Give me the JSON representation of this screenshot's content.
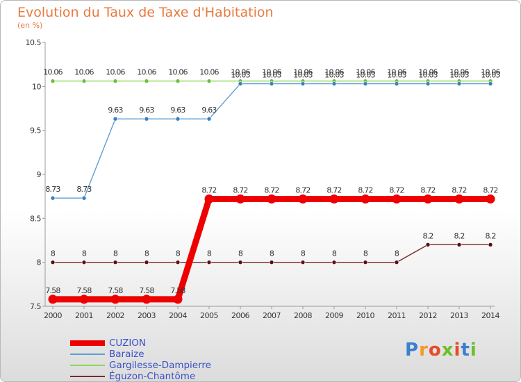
{
  "title": "Evolution du Taux de Taxe d'Habitation",
  "subtitle": "(en %)",
  "logo": {
    "text": "Proxiti",
    "letters": [
      "P",
      "r",
      "o",
      "x",
      "i",
      "t",
      "i"
    ],
    "colors": [
      "#3a7fd0",
      "#f29b2a",
      "#e84a2a",
      "#6cbf2a",
      "#e84a2a",
      "#3a7fd0",
      "#6cbf2a"
    ]
  },
  "chart_data": {
    "type": "line",
    "categories": [
      "2000",
      "2001",
      "2002",
      "2003",
      "2004",
      "2005",
      "2006",
      "2007",
      "2008",
      "2009",
      "2010",
      "2011",
      "2012",
      "2013",
      "2014"
    ],
    "ylim": [
      7.5,
      10.5
    ],
    "yticks": [
      "7.5",
      "8",
      "8.5",
      "9",
      "9.5",
      "10",
      "10.5"
    ],
    "grid": false,
    "legend_position": "bottom-left",
    "series": [
      {
        "name": "CUZION",
        "color": "#ee0000",
        "bold": true,
        "values": [
          7.58,
          7.58,
          7.58,
          7.58,
          7.58,
          8.72,
          8.72,
          8.72,
          8.72,
          8.72,
          8.72,
          8.72,
          8.72,
          8.72,
          8.72
        ],
        "labels": [
          "7.58",
          "7.58",
          "7.58",
          "7.58",
          "7.58",
          "8.72",
          "8.72",
          "8.72",
          "8.72",
          "8.72",
          "8.72",
          "8.72",
          "8.72",
          "8.72",
          "8.72"
        ]
      },
      {
        "name": "Baraize",
        "color": "#5f9ed1",
        "marker": "#3a7fc0",
        "values": [
          8.73,
          8.73,
          9.63,
          9.63,
          9.63,
          9.63,
          10.03,
          10.03,
          10.03,
          10.03,
          10.03,
          10.03,
          10.03,
          10.03,
          10.03
        ],
        "labels": [
          "8.73",
          "8.73",
          "9.63",
          "9.63",
          "9.63",
          "9.63",
          "10.03",
          "10.03",
          "10.03",
          "10.03",
          "10.03",
          "10.03",
          "10.03",
          "10.03",
          "10.03"
        ]
      },
      {
        "name": "Gargilesse-Dampierre",
        "color": "#8ed65a",
        "marker": "#6cbf3a",
        "values": [
          10.06,
          10.06,
          10.06,
          10.06,
          10.06,
          10.06,
          10.06,
          10.06,
          10.06,
          10.06,
          10.06,
          10.06,
          10.06,
          10.06,
          10.06
        ],
        "labels": [
          "10.06",
          "10.06",
          "10.06",
          "10.06",
          "10.06",
          "10.06",
          "10.06",
          "10.06",
          "10.06",
          "10.06",
          "10.06",
          "10.06",
          "10.06",
          "10.06",
          "10.06"
        ]
      },
      {
        "name": "Éguzon-Chantôme",
        "color": "#7a2a2a",
        "marker": "#5a1010",
        "values": [
          8,
          8,
          8,
          8,
          8,
          8,
          8,
          8,
          8,
          8,
          8,
          8,
          8.2,
          8.2,
          8.2
        ],
        "labels": [
          "8",
          "8",
          "8",
          "8",
          "8",
          "8",
          "8",
          "8",
          "8",
          "8",
          "8",
          "8",
          "8.2",
          "8.2",
          "8.2"
        ]
      }
    ]
  }
}
